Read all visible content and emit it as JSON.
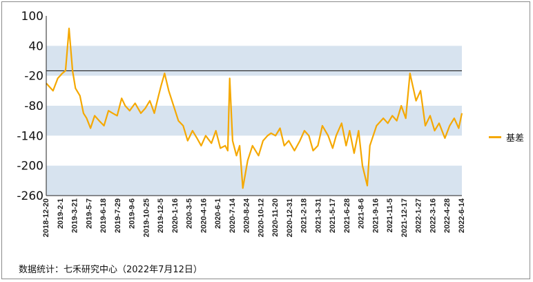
{
  "chart_data": {
    "type": "line",
    "title": "",
    "xlabel": "",
    "ylabel": "",
    "ylim": [
      -260,
      100
    ],
    "yticks": [
      100,
      40,
      -20,
      -80,
      -140,
      -200,
      -260
    ],
    "reference_line": -10,
    "grid": false,
    "band_colors": [
      "#d7e3ef",
      "#ffffff"
    ],
    "legend_position": "right",
    "colors": {
      "series": "#f5a800",
      "reference": "#222222"
    },
    "x_tick_labels": [
      "2018-12-20",
      "2019-2-1",
      "2019-3-21",
      "2019-5-7",
      "2019-6-18",
      "2019-7-29",
      "2019-9-6",
      "2019-10-25",
      "2019-12-5",
      "2020-1-16",
      "2020-3-5",
      "2020-4-16",
      "2020-6-1",
      "2020-7-14",
      "2020-8-24",
      "2020-10-12",
      "2020-11-20",
      "2020-12-31",
      "2021-2-18",
      "2021-3-31",
      "2021-5-17",
      "2021-6-28",
      "2021-8-6",
      "2021-9-16",
      "2021-11-5",
      "2021-12-17",
      "2022-1-27",
      "2022-3-16",
      "2022-4-28",
      "2022-6-14"
    ],
    "series": [
      {
        "name": "基差",
        "x": [
          "2018-12-20",
          "2019-1-10",
          "2019-1-25",
          "2019-2-1",
          "2019-2-8",
          "2019-2-18",
          "2019-3-1",
          "2019-3-12",
          "2019-3-21",
          "2019-4-4",
          "2019-4-15",
          "2019-4-25",
          "2019-5-7",
          "2019-5-20",
          "2019-6-3",
          "2019-6-18",
          "2019-7-2",
          "2019-7-15",
          "2019-7-29",
          "2019-8-12",
          "2019-8-23",
          "2019-9-6",
          "2019-9-23",
          "2019-10-11",
          "2019-10-25",
          "2019-11-8",
          "2019-11-22",
          "2019-12-5",
          "2019-12-13",
          "2019-12-24",
          "2020-1-6",
          "2020-1-16",
          "2020-2-5",
          "2020-2-20",
          "2020-3-5",
          "2020-3-20",
          "2020-4-3",
          "2020-4-16",
          "2020-4-30",
          "2020-5-18",
          "2020-6-1",
          "2020-6-15",
          "2020-6-30",
          "2020-7-8",
          "2020-7-14",
          "2020-7-23",
          "2020-8-4",
          "2020-8-14",
          "2020-8-24",
          "2020-9-8",
          "2020-9-23",
          "2020-10-12",
          "2020-10-26",
          "2020-11-9",
          "2020-11-20",
          "2020-12-4",
          "2020-12-18",
          "2020-12-31",
          "2021-1-14",
          "2021-2-1",
          "2021-2-18",
          "2021-3-4",
          "2021-3-18",
          "2021-3-31",
          "2021-4-15",
          "2021-4-29",
          "2021-5-17",
          "2021-5-31",
          "2021-6-11",
          "2021-6-28",
          "2021-7-12",
          "2021-7-23",
          "2021-8-6",
          "2021-8-20",
          "2021-9-1",
          "2021-9-16",
          "2021-9-24",
          "2021-10-15",
          "2021-11-5",
          "2021-11-19",
          "2021-12-3",
          "2021-12-17",
          "2021-12-31",
          "2022-1-14",
          "2022-1-27",
          "2022-2-15",
          "2022-3-1",
          "2022-3-16",
          "2022-3-31",
          "2022-4-14",
          "2022-4-28",
          "2022-5-16",
          "2022-5-31",
          "2022-6-14",
          "2022-6-28",
          "2022-7-8"
        ],
        "values": [
          -35,
          -50,
          -25,
          -20,
          -15,
          -10,
          75,
          -10,
          -45,
          -60,
          -95,
          -105,
          -125,
          -100,
          -110,
          -120,
          -90,
          -95,
          -100,
          -65,
          -80,
          -90,
          -75,
          -95,
          -85,
          -70,
          -95,
          -60,
          -40,
          -15,
          -50,
          -70,
          -110,
          -120,
          -150,
          -130,
          -145,
          -160,
          -140,
          -155,
          -130,
          -165,
          -160,
          -170,
          -25,
          -150,
          -180,
          -160,
          -245,
          -190,
          -160,
          -180,
          -150,
          -140,
          -135,
          -140,
          -125,
          -160,
          -150,
          -170,
          -150,
          -130,
          -140,
          -170,
          -160,
          -120,
          -140,
          -165,
          -140,
          -115,
          -160,
          -130,
          -175,
          -130,
          -200,
          -240,
          -160,
          -120,
          -105,
          -115,
          -100,
          -110,
          -80,
          -105,
          -15,
          -70,
          -50,
          -120,
          -100,
          -130,
          -115,
          -145,
          -120,
          -105,
          -125,
          -95
        ]
      }
    ]
  },
  "legend": {
    "label": "基差"
  },
  "source": "数据统计：七禾研究中心（2022年7月12日）"
}
